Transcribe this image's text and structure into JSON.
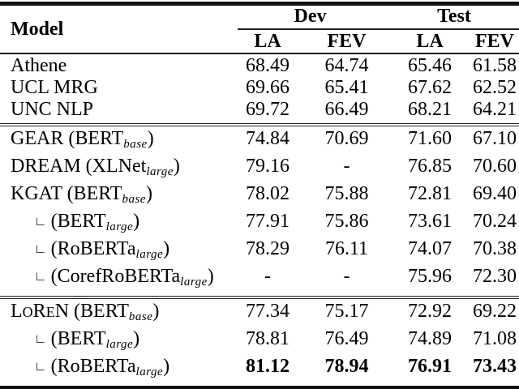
{
  "table": {
    "header": {
      "model": "Model",
      "groups": [
        "Dev",
        "Test"
      ],
      "subcols": [
        "LA",
        "FEV",
        "LA",
        "FEV"
      ]
    },
    "blocks": [
      {
        "rows": [
          {
            "name": [
              {
                "t": "Athene"
              }
            ],
            "indent": false,
            "bold": false,
            "values": [
              "68.49",
              "64.74",
              "65.46",
              "61.58"
            ]
          },
          {
            "name": [
              {
                "t": "UCL MRG"
              }
            ],
            "indent": false,
            "bold": false,
            "values": [
              "69.66",
              "65.41",
              "67.62",
              "62.52"
            ]
          },
          {
            "name": [
              {
                "t": "UNC NLP"
              }
            ],
            "indent": false,
            "bold": false,
            "values": [
              "69.72",
              "66.49",
              "68.21",
              "64.21"
            ]
          }
        ]
      },
      {
        "rows": [
          {
            "name": [
              {
                "t": "GEAR (BERT"
              },
              {
                "t": "base",
                "s": "sub"
              },
              {
                "t": ")"
              }
            ],
            "indent": false,
            "bold": false,
            "values": [
              "74.84",
              "70.69",
              "71.60",
              "67.10"
            ]
          },
          {
            "name": [
              {
                "t": "DREAM (XLNet"
              },
              {
                "t": "large",
                "s": "sub"
              },
              {
                "t": ")"
              }
            ],
            "indent": false,
            "bold": false,
            "values": [
              "79.16",
              "-",
              "76.85",
              "70.60"
            ]
          },
          {
            "name": [
              {
                "t": "KGAT (BERT"
              },
              {
                "t": "base",
                "s": "sub"
              },
              {
                "t": ")"
              }
            ],
            "indent": false,
            "bold": false,
            "values": [
              "78.02",
              "75.88",
              "72.81",
              "69.40"
            ]
          },
          {
            "name": [
              {
                "t": "∟",
                "s": "corner"
              },
              {
                "t": "(BERT"
              },
              {
                "t": "large",
                "s": "sub"
              },
              {
                "t": ")"
              }
            ],
            "indent": true,
            "bold": false,
            "values": [
              "77.91",
              "75.86",
              "73.61",
              "70.24"
            ]
          },
          {
            "name": [
              {
                "t": "∟",
                "s": "corner"
              },
              {
                "t": "(RoBERTa"
              },
              {
                "t": "large",
                "s": "sub"
              },
              {
                "t": ")"
              }
            ],
            "indent": true,
            "bold": false,
            "values": [
              "78.29",
              "76.11",
              "74.07",
              "70.38"
            ]
          },
          {
            "name": [
              {
                "t": "∟",
                "s": "corner"
              },
              {
                "t": "(CorefRoBERTa"
              },
              {
                "t": "large",
                "s": "sub"
              },
              {
                "t": ")"
              }
            ],
            "indent": true,
            "bold": false,
            "values": [
              "-",
              "-",
              "75.96",
              "72.30"
            ]
          }
        ]
      },
      {
        "rows": [
          {
            "name": [
              {
                "t": "L"
              },
              {
                "t": "O",
                "s": "sc"
              },
              {
                "t": "R"
              },
              {
                "t": "E",
                "s": "sc"
              },
              {
                "t": "N"
              },
              {
                "t": " (BERT"
              },
              {
                "t": "base",
                "s": "sub"
              },
              {
                "t": ")"
              }
            ],
            "indent": false,
            "bold": false,
            "values": [
              "77.34",
              "75.17",
              "72.92",
              "69.22"
            ]
          },
          {
            "name": [
              {
                "t": "∟",
                "s": "corner"
              },
              {
                "t": "(BERT"
              },
              {
                "t": "large",
                "s": "sub"
              },
              {
                "t": ")"
              }
            ],
            "indent": true,
            "bold": false,
            "values": [
              "78.81",
              "76.49",
              "74.89",
              "71.08"
            ]
          },
          {
            "name": [
              {
                "t": "∟",
                "s": "corner"
              },
              {
                "t": "(RoBERTa"
              },
              {
                "t": "large",
                "s": "sub"
              },
              {
                "t": ")"
              }
            ],
            "indent": true,
            "bold": true,
            "values": [
              "81.12",
              "78.94",
              "76.91",
              "73.43"
            ]
          }
        ]
      }
    ]
  }
}
